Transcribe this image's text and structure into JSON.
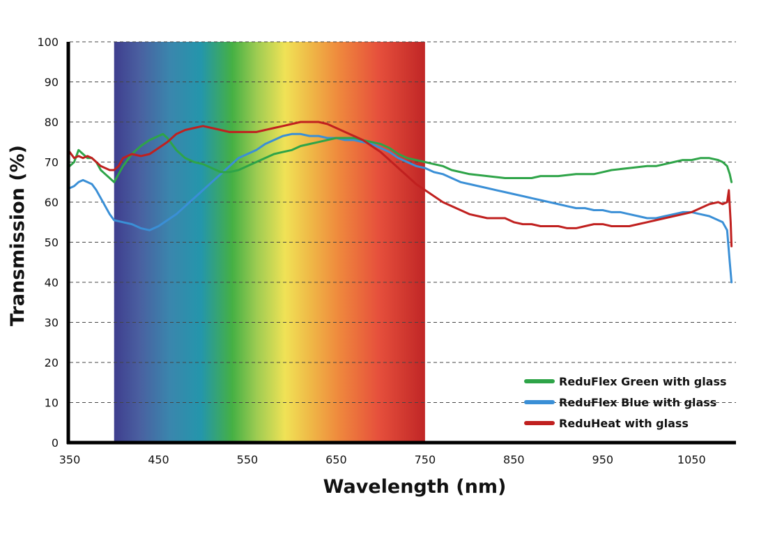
{
  "chart_data": {
    "type": "line",
    "title": "",
    "xlabel": "Wavelength (nm)",
    "ylabel": "Transmission (%)",
    "xlim": [
      350,
      1100
    ],
    "ylim": [
      0,
      100
    ],
    "x_ticks": [
      "350",
      "450",
      "550",
      "650",
      "750",
      "850",
      "950",
      "1050"
    ],
    "y_ticks": [
      "0",
      "10",
      "20",
      "30",
      "40",
      "50",
      "60",
      "70",
      "80",
      "90",
      "100"
    ],
    "grid": "horizontal-dashed",
    "legend_position": "bottom-right",
    "spectrum_band": {
      "from": 400,
      "to": 750
    },
    "series": [
      {
        "name": "ReduFlex Green with glass",
        "color": "#2ea448",
        "points": [
          [
            350,
            69
          ],
          [
            355,
            70
          ],
          [
            360,
            73
          ],
          [
            365,
            72
          ],
          [
            370,
            71
          ],
          [
            375,
            71
          ],
          [
            380,
            70
          ],
          [
            385,
            68
          ],
          [
            390,
            67
          ],
          [
            395,
            66
          ],
          [
            400,
            65
          ],
          [
            405,
            67
          ],
          [
            410,
            69
          ],
          [
            420,
            72
          ],
          [
            430,
            74
          ],
          [
            440,
            75.5
          ],
          [
            450,
            76.5
          ],
          [
            455,
            77
          ],
          [
            460,
            76
          ],
          [
            470,
            73
          ],
          [
            480,
            71
          ],
          [
            490,
            70
          ],
          [
            500,
            69.5
          ],
          [
            510,
            68.5
          ],
          [
            520,
            67.5
          ],
          [
            530,
            67.5
          ],
          [
            540,
            68
          ],
          [
            550,
            69
          ],
          [
            560,
            70
          ],
          [
            570,
            71
          ],
          [
            580,
            72
          ],
          [
            590,
            72.5
          ],
          [
            600,
            73
          ],
          [
            610,
            74
          ],
          [
            620,
            74.5
          ],
          [
            630,
            75
          ],
          [
            640,
            75.5
          ],
          [
            650,
            76
          ],
          [
            660,
            76
          ],
          [
            670,
            76
          ],
          [
            680,
            75.5
          ],
          [
            690,
            75
          ],
          [
            700,
            74.5
          ],
          [
            710,
            73.5
          ],
          [
            720,
            72
          ],
          [
            730,
            71
          ],
          [
            740,
            70.5
          ],
          [
            750,
            70
          ],
          [
            760,
            69.5
          ],
          [
            770,
            69
          ],
          [
            780,
            68
          ],
          [
            790,
            67.5
          ],
          [
            800,
            67
          ],
          [
            820,
            66.5
          ],
          [
            840,
            66
          ],
          [
            860,
            66
          ],
          [
            870,
            66
          ],
          [
            880,
            66.5
          ],
          [
            900,
            66.5
          ],
          [
            920,
            67
          ],
          [
            940,
            67
          ],
          [
            950,
            67.5
          ],
          [
            960,
            68
          ],
          [
            980,
            68.5
          ],
          [
            1000,
            69
          ],
          [
            1010,
            69
          ],
          [
            1020,
            69.5
          ],
          [
            1030,
            70
          ],
          [
            1040,
            70.5
          ],
          [
            1050,
            70.5
          ],
          [
            1060,
            71
          ],
          [
            1070,
            71
          ],
          [
            1080,
            70.5
          ],
          [
            1085,
            70
          ],
          [
            1090,
            69
          ],
          [
            1093,
            67
          ],
          [
            1095,
            65
          ]
        ]
      },
      {
        "name": "ReduFlex Blue with glass",
        "color": "#3a8fd6",
        "points": [
          [
            350,
            63.5
          ],
          [
            355,
            64
          ],
          [
            360,
            65
          ],
          [
            365,
            65.5
          ],
          [
            370,
            65
          ],
          [
            375,
            64.5
          ],
          [
            380,
            63
          ],
          [
            385,
            61
          ],
          [
            390,
            59
          ],
          [
            395,
            57
          ],
          [
            400,
            55.5
          ],
          [
            410,
            55
          ],
          [
            420,
            54.5
          ],
          [
            430,
            53.5
          ],
          [
            440,
            53
          ],
          [
            450,
            54
          ],
          [
            460,
            55.5
          ],
          [
            470,
            57
          ],
          [
            480,
            59
          ],
          [
            490,
            61
          ],
          [
            500,
            63
          ],
          [
            510,
            65
          ],
          [
            520,
            67
          ],
          [
            530,
            69
          ],
          [
            540,
            71
          ],
          [
            550,
            72
          ],
          [
            560,
            73
          ],
          [
            570,
            74.5
          ],
          [
            580,
            75.5
          ],
          [
            590,
            76.5
          ],
          [
            600,
            77
          ],
          [
            610,
            77
          ],
          [
            620,
            76.5
          ],
          [
            630,
            76.5
          ],
          [
            640,
            76
          ],
          [
            650,
            76
          ],
          [
            660,
            75.5
          ],
          [
            670,
            75.5
          ],
          [
            680,
            75
          ],
          [
            690,
            74.5
          ],
          [
            700,
            73.5
          ],
          [
            710,
            72.5
          ],
          [
            720,
            71
          ],
          [
            730,
            70
          ],
          [
            740,
            69
          ],
          [
            750,
            68.5
          ],
          [
            760,
            67.5
          ],
          [
            770,
            67
          ],
          [
            780,
            66
          ],
          [
            790,
            65
          ],
          [
            800,
            64.5
          ],
          [
            810,
            64
          ],
          [
            820,
            63.5
          ],
          [
            830,
            63
          ],
          [
            840,
            62.5
          ],
          [
            850,
            62
          ],
          [
            860,
            61.5
          ],
          [
            870,
            61
          ],
          [
            880,
            60.5
          ],
          [
            890,
            60
          ],
          [
            900,
            59.5
          ],
          [
            910,
            59
          ],
          [
            920,
            58.5
          ],
          [
            930,
            58.5
          ],
          [
            940,
            58
          ],
          [
            950,
            58
          ],
          [
            960,
            57.5
          ],
          [
            970,
            57.5
          ],
          [
            980,
            57
          ],
          [
            990,
            56.5
          ],
          [
            1000,
            56
          ],
          [
            1010,
            56
          ],
          [
            1020,
            56.5
          ],
          [
            1030,
            57
          ],
          [
            1040,
            57.5
          ],
          [
            1050,
            57.5
          ],
          [
            1060,
            57
          ],
          [
            1070,
            56.5
          ],
          [
            1080,
            55.5
          ],
          [
            1085,
            55
          ],
          [
            1090,
            53
          ],
          [
            1093,
            45
          ],
          [
            1095,
            40
          ]
        ]
      },
      {
        "name": "ReduHeat with glass",
        "color": "#c0201f",
        "points": [
          [
            350,
            72.5
          ],
          [
            355,
            71
          ],
          [
            360,
            71.5
          ],
          [
            365,
            71
          ],
          [
            370,
            71.5
          ],
          [
            375,
            71
          ],
          [
            380,
            70
          ],
          [
            385,
            69
          ],
          [
            390,
            68.5
          ],
          [
            395,
            68
          ],
          [
            400,
            68
          ],
          [
            405,
            69
          ],
          [
            410,
            71
          ],
          [
            420,
            72
          ],
          [
            430,
            71.5
          ],
          [
            440,
            72
          ],
          [
            450,
            73.5
          ],
          [
            460,
            75
          ],
          [
            470,
            77
          ],
          [
            480,
            78
          ],
          [
            490,
            78.5
          ],
          [
            500,
            79
          ],
          [
            510,
            78.5
          ],
          [
            520,
            78
          ],
          [
            530,
            77.5
          ],
          [
            540,
            77.5
          ],
          [
            550,
            77.5
          ],
          [
            560,
            77.5
          ],
          [
            570,
            78
          ],
          [
            580,
            78.5
          ],
          [
            590,
            79
          ],
          [
            600,
            79.5
          ],
          [
            610,
            80
          ],
          [
            620,
            80
          ],
          [
            630,
            80
          ],
          [
            640,
            79.5
          ],
          [
            650,
            78.5
          ],
          [
            660,
            77.5
          ],
          [
            670,
            76.5
          ],
          [
            680,
            75.5
          ],
          [
            690,
            74
          ],
          [
            700,
            72.5
          ],
          [
            710,
            70.5
          ],
          [
            720,
            68.5
          ],
          [
            730,
            66.5
          ],
          [
            740,
            64.5
          ],
          [
            750,
            63
          ],
          [
            760,
            61.5
          ],
          [
            770,
            60
          ],
          [
            780,
            59
          ],
          [
            790,
            58
          ],
          [
            800,
            57
          ],
          [
            810,
            56.5
          ],
          [
            820,
            56
          ],
          [
            830,
            56
          ],
          [
            840,
            56
          ],
          [
            850,
            55
          ],
          [
            860,
            54.5
          ],
          [
            870,
            54.5
          ],
          [
            880,
            54
          ],
          [
            890,
            54
          ],
          [
            900,
            54
          ],
          [
            910,
            53.5
          ],
          [
            920,
            53.5
          ],
          [
            930,
            54
          ],
          [
            940,
            54.5
          ],
          [
            950,
            54.5
          ],
          [
            960,
            54
          ],
          [
            970,
            54
          ],
          [
            980,
            54
          ],
          [
            990,
            54.5
          ],
          [
            1000,
            55
          ],
          [
            1010,
            55.5
          ],
          [
            1020,
            56
          ],
          [
            1030,
            56.5
          ],
          [
            1040,
            57
          ],
          [
            1050,
            57.5
          ],
          [
            1060,
            58.5
          ],
          [
            1070,
            59.5
          ],
          [
            1080,
            60
          ],
          [
            1085,
            59.5
          ],
          [
            1090,
            60
          ],
          [
            1092,
            63
          ],
          [
            1094,
            55
          ],
          [
            1095,
            49
          ]
        ]
      }
    ]
  }
}
